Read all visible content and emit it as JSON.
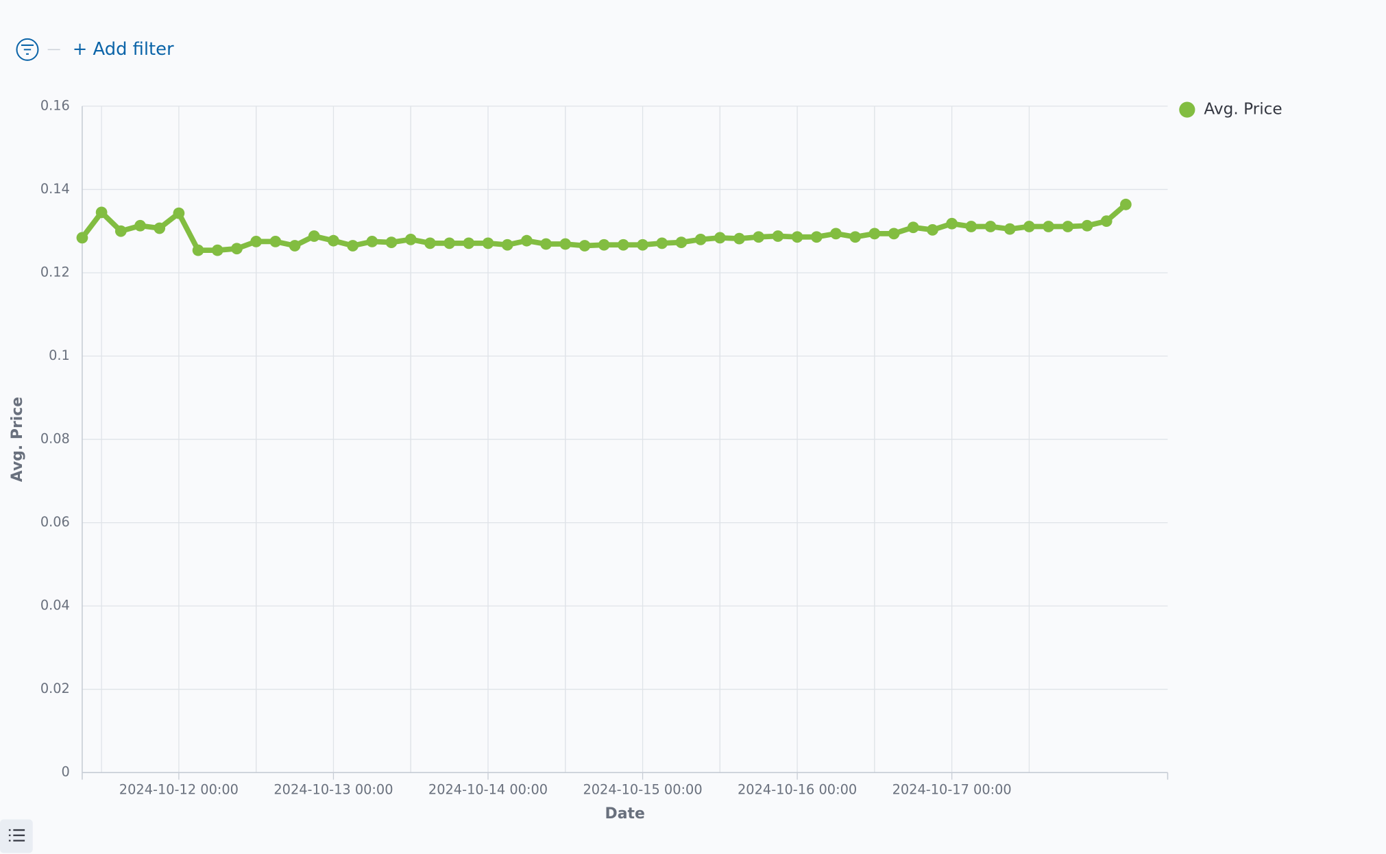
{
  "filter_bar": {
    "add_filter": "+ Add filter"
  },
  "chart_data": {
    "type": "line",
    "x_label": "Date",
    "y_label": "Avg. Price",
    "x": [
      "2024-10-11 09:00",
      "2024-10-11 12:00",
      "2024-10-11 15:00",
      "2024-10-11 18:00",
      "2024-10-11 21:00",
      "2024-10-12 00:00",
      "2024-10-12 03:00",
      "2024-10-12 06:00",
      "2024-10-12 09:00",
      "2024-10-12 12:00",
      "2024-10-12 15:00",
      "2024-10-12 18:00",
      "2024-10-12 21:00",
      "2024-10-13 00:00",
      "2024-10-13 03:00",
      "2024-10-13 06:00",
      "2024-10-13 09:00",
      "2024-10-13 12:00",
      "2024-10-13 15:00",
      "2024-10-13 18:00",
      "2024-10-13 21:00",
      "2024-10-14 00:00",
      "2024-10-14 03:00",
      "2024-10-14 06:00",
      "2024-10-14 09:00",
      "2024-10-14 12:00",
      "2024-10-14 15:00",
      "2024-10-14 18:00",
      "2024-10-14 21:00",
      "2024-10-15 00:00",
      "2024-10-15 03:00",
      "2024-10-15 06:00",
      "2024-10-15 09:00",
      "2024-10-15 12:00",
      "2024-10-15 15:00",
      "2024-10-15 18:00",
      "2024-10-15 21:00",
      "2024-10-16 00:00",
      "2024-10-16 03:00",
      "2024-10-16 06:00",
      "2024-10-16 09:00",
      "2024-10-16 12:00",
      "2024-10-16 15:00",
      "2024-10-16 18:00",
      "2024-10-16 21:00",
      "2024-10-17 00:00",
      "2024-10-17 03:00",
      "2024-10-17 06:00",
      "2024-10-17 09:00",
      "2024-10-17 12:00",
      "2024-10-17 15:00",
      "2024-10-17 18:00",
      "2024-10-17 21:00",
      "2024-10-18 00:00",
      "2024-10-18 03:00"
    ],
    "series": [
      {
        "name": "Avg. Price",
        "color": "#82bd41",
        "values": [
          0.1284,
          0.1345,
          0.13,
          0.1313,
          0.1307,
          0.1343,
          0.1254,
          0.1254,
          0.1258,
          0.1275,
          0.1275,
          0.1265,
          0.1288,
          0.1277,
          0.1265,
          0.1275,
          0.1273,
          0.128,
          0.1271,
          0.1271,
          0.1271,
          0.1271,
          0.1267,
          0.1277,
          0.1269,
          0.1269,
          0.1265,
          0.1267,
          0.1267,
          0.1267,
          0.1271,
          0.1273,
          0.128,
          0.1284,
          0.1282,
          0.1286,
          0.1288,
          0.1286,
          0.1286,
          0.1294,
          0.1286,
          0.1294,
          0.1294,
          0.1309,
          0.1303,
          0.1318,
          0.1311,
          0.1311,
          0.1305,
          0.1311,
          0.1311,
          0.1311,
          0.1313,
          0.1324,
          0.1364
        ]
      }
    ],
    "xlim": [
      "2024-10-11 09:00",
      "2024-10-18 09:30"
    ],
    "xticks": [
      "2024-10-12 00:00",
      "2024-10-13 00:00",
      "2024-10-14 00:00",
      "2024-10-15 00:00",
      "2024-10-16 00:00",
      "2024-10-17 00:00"
    ],
    "ylim": [
      0,
      0.16
    ],
    "yticks": [
      0,
      0.02,
      0.04,
      0.06,
      0.08,
      0.1,
      0.12,
      0.14,
      0.16
    ],
    "grid": true,
    "legend": "right"
  }
}
